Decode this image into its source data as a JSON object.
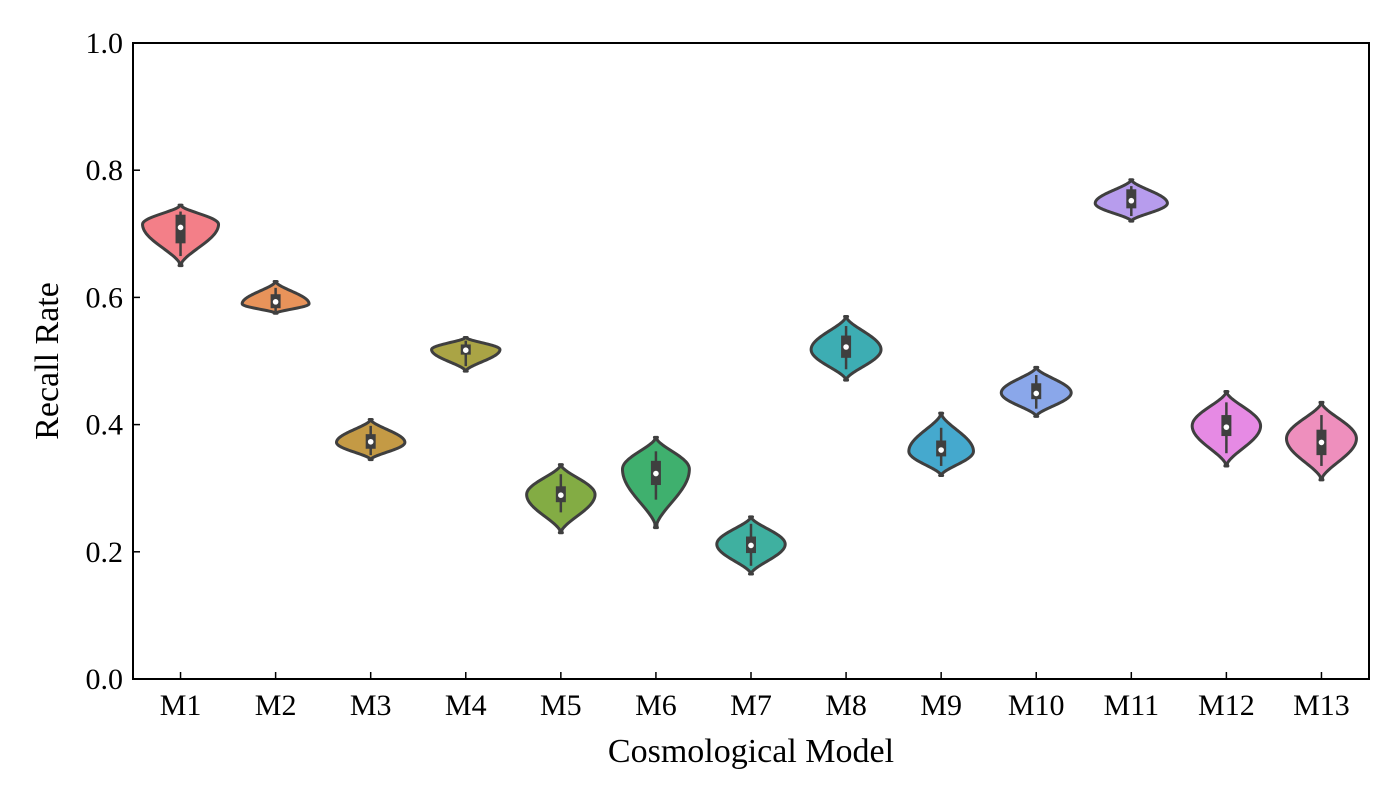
{
  "chart_data": {
    "type": "violin",
    "title": "",
    "xlabel": "Cosmological Model",
    "ylabel": "Recall Rate",
    "ylim": [
      0.0,
      1.0
    ],
    "yticks": [
      "0.0",
      "0.2",
      "0.4",
      "0.6",
      "0.8",
      "1.0"
    ],
    "grid": false,
    "categories": [
      "M1",
      "M2",
      "M3",
      "M4",
      "M5",
      "M6",
      "M7",
      "M8",
      "M9",
      "M10",
      "M11",
      "M12",
      "M13"
    ],
    "violins": [
      {
        "category": "M1",
        "color": "#f37f88",
        "min": 0.65,
        "max": 0.745,
        "mode": 0.715,
        "q1": 0.685,
        "median": 0.71,
        "q3": 0.73,
        "whisker_low": 0.665,
        "whisker_high": 0.735,
        "peak_width": 1.0
      },
      {
        "category": "M2",
        "color": "#e8935a",
        "min": 0.575,
        "max": 0.625,
        "mode": 0.59,
        "q1": 0.583,
        "median": 0.593,
        "q3": 0.605,
        "whisker_low": 0.578,
        "whisker_high": 0.615,
        "peak_width": 0.88
      },
      {
        "category": "M3",
        "color": "#c49a45",
        "min": 0.345,
        "max": 0.408,
        "mode": 0.372,
        "q1": 0.362,
        "median": 0.373,
        "q3": 0.385,
        "whisker_low": 0.352,
        "whisker_high": 0.398,
        "peak_width": 0.9
      },
      {
        "category": "M4",
        "color": "#aaa445",
        "min": 0.484,
        "max": 0.537,
        "mode": 0.518,
        "q1": 0.51,
        "median": 0.517,
        "q3": 0.526,
        "whisker_low": 0.492,
        "whisker_high": 0.532,
        "peak_width": 0.9
      },
      {
        "category": "M5",
        "color": "#83ac44",
        "min": 0.23,
        "max": 0.337,
        "mode": 0.29,
        "q1": 0.278,
        "median": 0.289,
        "q3": 0.303,
        "whisker_low": 0.262,
        "whisker_high": 0.322,
        "peak_width": 0.9
      },
      {
        "category": "M6",
        "color": "#3fb06e",
        "min": 0.238,
        "max": 0.38,
        "mode": 0.33,
        "q1": 0.305,
        "median": 0.323,
        "q3": 0.343,
        "whisker_low": 0.282,
        "whisker_high": 0.358,
        "peak_width": 0.88
      },
      {
        "category": "M7",
        "color": "#3fb0a0",
        "min": 0.165,
        "max": 0.255,
        "mode": 0.212,
        "q1": 0.198,
        "median": 0.21,
        "q3": 0.224,
        "whisker_low": 0.178,
        "whisker_high": 0.244,
        "peak_width": 0.9
      },
      {
        "category": "M8",
        "color": "#3dadb3",
        "min": 0.47,
        "max": 0.57,
        "mode": 0.518,
        "q1": 0.505,
        "median": 0.522,
        "q3": 0.54,
        "whisker_low": 0.487,
        "whisker_high": 0.555,
        "peak_width": 0.92
      },
      {
        "category": "M9",
        "color": "#45a9ce",
        "min": 0.32,
        "max": 0.418,
        "mode": 0.358,
        "q1": 0.35,
        "median": 0.36,
        "q3": 0.375,
        "whisker_low": 0.335,
        "whisker_high": 0.395,
        "peak_width": 0.85
      },
      {
        "category": "M10",
        "color": "#8aa7ea",
        "min": 0.413,
        "max": 0.49,
        "mode": 0.45,
        "q1": 0.44,
        "median": 0.449,
        "q3": 0.465,
        "whisker_low": 0.425,
        "whisker_high": 0.478,
        "peak_width": 0.92
      },
      {
        "category": "M11",
        "color": "#b79ced",
        "min": 0.72,
        "max": 0.785,
        "mode": 0.748,
        "q1": 0.74,
        "median": 0.752,
        "q3": 0.77,
        "whisker_low": 0.728,
        "whisker_high": 0.775,
        "peak_width": 0.95
      },
      {
        "category": "M12",
        "color": "#e68ae4",
        "min": 0.335,
        "max": 0.452,
        "mode": 0.398,
        "q1": 0.382,
        "median": 0.396,
        "q3": 0.415,
        "whisker_low": 0.355,
        "whisker_high": 0.435,
        "peak_width": 0.9
      },
      {
        "category": "M13",
        "color": "#ee8fbd",
        "min": 0.313,
        "max": 0.435,
        "mode": 0.378,
        "q1": 0.352,
        "median": 0.372,
        "q3": 0.392,
        "whisker_low": 0.335,
        "whisker_high": 0.415,
        "peak_width": 0.92
      }
    ],
    "outline_color": "#3f3f3f",
    "box_color": "#3f3f3f",
    "median_color": "#ffffff"
  }
}
